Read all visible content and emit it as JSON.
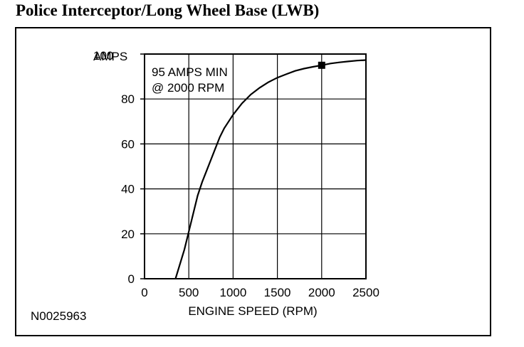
{
  "header": {
    "title": "Police Interceptor/Long Wheel Base (LWB)"
  },
  "figure": {
    "reference_code": "N0025963"
  },
  "chart_data": {
    "type": "line",
    "title": "",
    "xlabel": "ENGINE SPEED (RPM)",
    "ylabel": "AMPS",
    "xlim": [
      0,
      2500
    ],
    "ylim": [
      0,
      100
    ],
    "x_ticks": [
      0,
      500,
      1000,
      1500,
      2000,
      2500
    ],
    "x_tick_labels": [
      "0",
      "500",
      "1000",
      "1500",
      "2000",
      "2500"
    ],
    "y_ticks": [
      0,
      20,
      40,
      60,
      80,
      100
    ],
    "y_tick_labels": [
      "0",
      "20",
      "40",
      "60",
      "80",
      "100"
    ],
    "grid": true,
    "annotation": {
      "lines": [
        "95 AMPS MIN",
        "@ 2000 RPM"
      ],
      "x": 2000,
      "y": 95
    },
    "series": [
      {
        "x": [
          350,
          450,
          500,
          550,
          600,
          650,
          700,
          750,
          800,
          850,
          900,
          950,
          1000,
          1100,
          1200,
          1300,
          1400,
          1500,
          1600,
          1700,
          1800,
          1900,
          2000,
          2100,
          2200,
          2300,
          2400,
          2500
        ],
        "y": [
          0,
          13,
          21,
          29,
          37,
          43,
          48,
          53,
          58,
          63,
          67,
          70,
          73,
          78,
          82,
          85,
          87.5,
          89.5,
          91,
          92.5,
          93.5,
          94.3,
          95,
          95.8,
          96.3,
          96.7,
          97.1,
          97.3
        ]
      }
    ]
  }
}
